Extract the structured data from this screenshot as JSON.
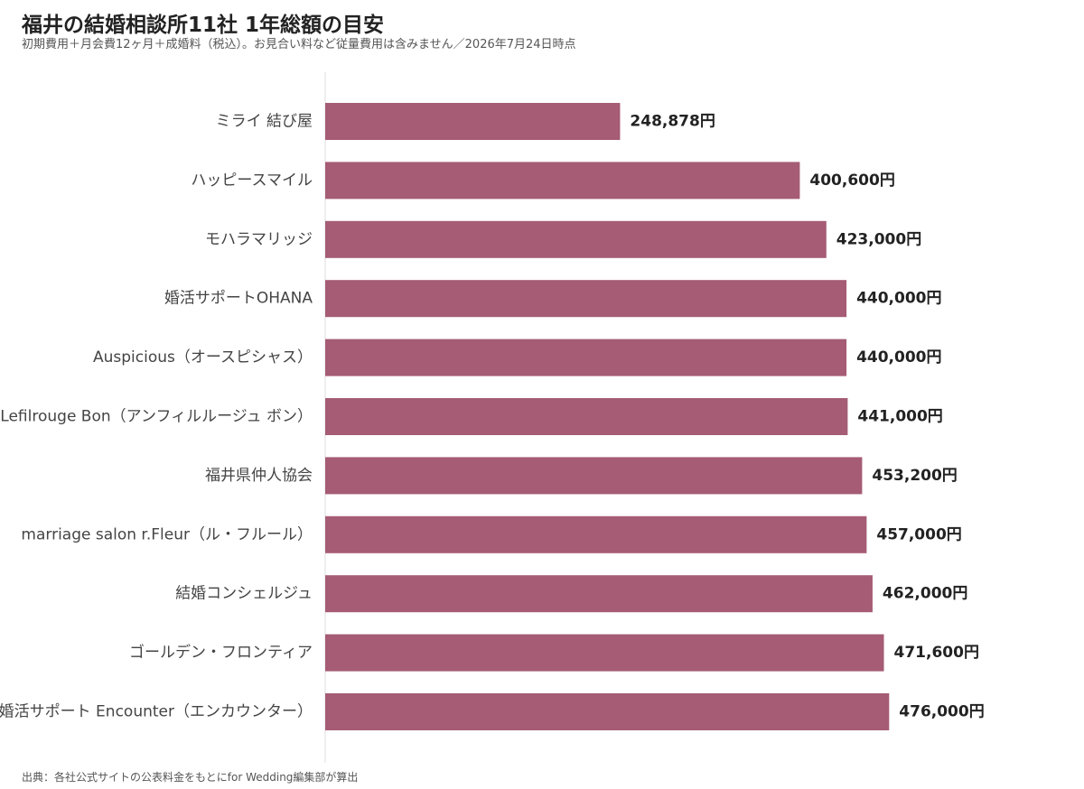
{
  "header": {
    "title": "福井の結婚相談所11社 1年総額の目安",
    "subtitle": "初期費用＋月会費12ヶ月＋成婚料（税込）。お見合い料など従量費用は含みません／2026年7月24日時点"
  },
  "footer": {
    "source": "出典：各社公式サイトの公表料金をもとにfor Wedding編集部が算出"
  },
  "colors": {
    "bar": "#a55c74",
    "axis": "#dddddd",
    "label": "#444444",
    "value": "#222222"
  },
  "chart_data": {
    "type": "bar",
    "orientation": "horizontal",
    "value_suffix": "円",
    "xlim": [
      0,
      520000
    ],
    "grid": false,
    "categories": [
      "ミライ 結び屋",
      "ハッピースマイル",
      "モハラマリッジ",
      "婚活サポートOHANA",
      "Auspicious（オースピシャス）",
      "Lefilrouge Bon（アンフィルルージュ ボン）",
      "福井県仲人協会",
      "marriage salon r.Fleur（ル・フルール）",
      "結婚コンシェルジュ",
      "ゴールデン・フロンティア",
      "婚活サポート Encounter（エンカウンター）"
    ],
    "values": [
      248878,
      400600,
      423000,
      440000,
      440000,
      441000,
      453200,
      457000,
      462000,
      471600,
      476000
    ],
    "value_labels": [
      "248,878円",
      "400,600円",
      "423,000円",
      "440,000円",
      "440,000円",
      "441,000円",
      "453,200円",
      "457,000円",
      "462,000円",
      "471,600円",
      "476,000円"
    ]
  }
}
